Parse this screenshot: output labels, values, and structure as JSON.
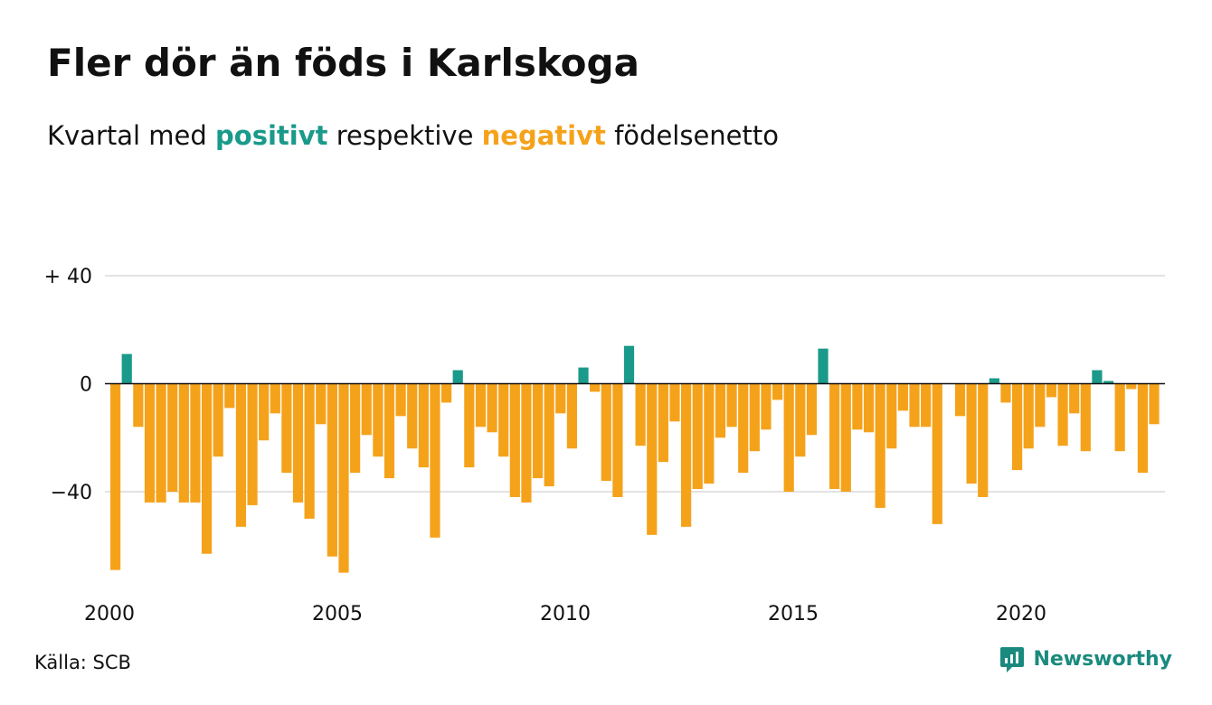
{
  "header": {
    "title": "Fler dör än föds i Karlskoga",
    "subtitle_prefix": "Kvartal med ",
    "subtitle_positive": "positivt",
    "subtitle_middle": " respektive ",
    "subtitle_negative": "negativt",
    "subtitle_suffix": " födelsenetto"
  },
  "footer": {
    "source": "Källa: SCB",
    "brand": "Newsworthy",
    "brand_icon": "newsworthy-logo-icon"
  },
  "colors": {
    "positive": "#1a9a8a",
    "negative": "#f5a21b",
    "brand": "#1a8a7e",
    "grid": "#e3e3e3",
    "baseline": "#111111"
  },
  "chart_data": {
    "type": "bar",
    "title": "Fler dör än föds i Karlskoga",
    "subtitle": "Kvartal med positivt respektive negativt födelsenetto",
    "x_ticks": [
      "2000",
      "2005",
      "2010",
      "2015",
      "2020"
    ],
    "y_ticks": [
      {
        "value": 40,
        "label": "+ 40"
      },
      {
        "value": 0,
        "label": "0"
      },
      {
        "value": -40,
        "label": "−40"
      }
    ],
    "ylim": [
      -72,
      42
    ],
    "grid": true,
    "series": [
      {
        "quarter_start": "2000Q1",
        "values": [
          -69,
          11,
          -16,
          -44,
          -44,
          -40,
          -44,
          -44,
          -63,
          -27,
          -9,
          -53,
          -45,
          -21,
          -11,
          -33,
          -44,
          -50,
          -15,
          -64,
          -70,
          -33,
          -19,
          -27,
          -35,
          -12,
          -24,
          -31,
          -57,
          -7,
          5,
          -31,
          -16,
          -18,
          -27,
          -42,
          -44,
          -35,
          -38,
          -11,
          -24,
          6,
          -3,
          -36,
          -42,
          14,
          -23,
          -56,
          -29,
          -14,
          -53,
          -39,
          -37,
          -20,
          -16,
          -33,
          -25,
          -17,
          -6,
          -40,
          -27,
          -19,
          13,
          -39,
          -40,
          -17,
          -18,
          -46,
          -24,
          -10,
          -16,
          -16,
          -52,
          0,
          -12,
          -37,
          -42,
          2,
          -7,
          -32,
          -24,
          -16,
          -5,
          -23,
          -11,
          -25,
          5,
          1,
          -25,
          -2,
          -33,
          -15
        ]
      }
    ]
  }
}
